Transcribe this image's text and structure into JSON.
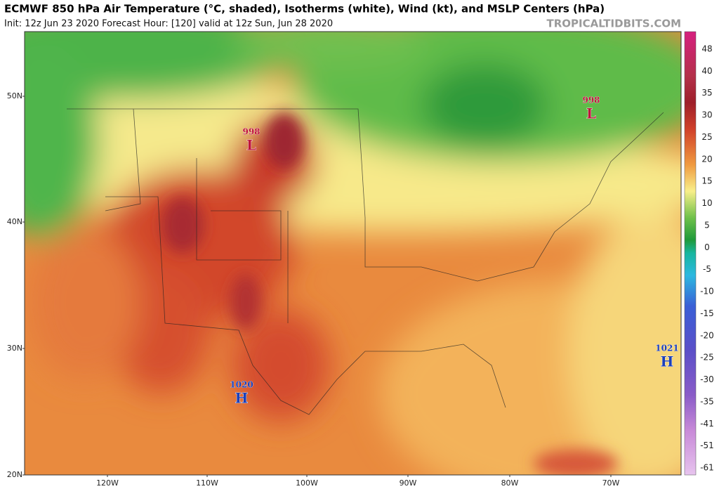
{
  "header": {
    "title": "ECMWF 850 hPa Air Temperature (°C, shaded), Isotherms (white), Wind (kt), and MSLP Centers (hPa)",
    "subtitle": "Init: 12z Jun 23 2020   Forecast Hour: [120]   valid at 12z Sun, Jun 28 2020",
    "watermark": "TROPICALTIDBITS.COM"
  },
  "map": {
    "latitude_labels": [
      "50N",
      "40N",
      "30N",
      "20N"
    ],
    "longitude_labels": [
      "120W",
      "110W",
      "100W",
      "90W",
      "80W",
      "70W"
    ],
    "pressure_centers": [
      {
        "letter": "L",
        "value": "998"
      },
      {
        "letter": "L",
        "value": "998"
      },
      {
        "letter": "H",
        "value": "1020"
      },
      {
        "letter": "H",
        "value": "1021"
      }
    ]
  },
  "colorbar": {
    "labels": [
      "48",
      "40",
      "35",
      "30",
      "25",
      "20",
      "15",
      "10",
      "5",
      "0",
      "-5",
      "-10",
      "-15",
      "-20",
      "-25",
      "-30",
      "-35",
      "-41",
      "-51",
      "-61"
    ]
  }
}
